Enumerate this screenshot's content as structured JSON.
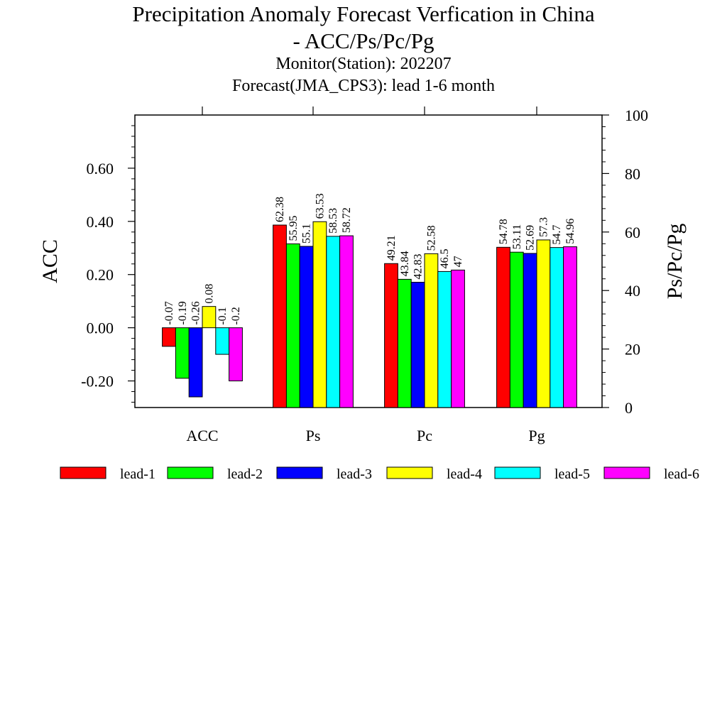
{
  "title": "Precipitation Anomaly Forecast Verfication in China",
  "title_line2": "- ACC/Ps/Pc/Pg",
  "subtitle_1": "Monitor(Station): 202207",
  "subtitle_2": "Forecast(JMA_CPS3): lead 1-6 month",
  "chart_data": {
    "type": "bar",
    "categories": [
      "ACC",
      "Ps",
      "Pc",
      "Pg"
    ],
    "series": [
      {
        "name": "lead-1",
        "color": "#ff0000",
        "values": [
          -0.07,
          62.38,
          49.21,
          54.78
        ],
        "labels": [
          "-0.07",
          "62.38",
          "49.21",
          "54.78"
        ]
      },
      {
        "name": "lead-2",
        "color": "#00ff00",
        "values": [
          -0.19,
          55.95,
          43.84,
          53.11
        ],
        "labels": [
          "-0.19",
          "55.95",
          "43.84",
          "53.11"
        ]
      },
      {
        "name": "lead-3",
        "color": "#0000ff",
        "values": [
          -0.26,
          55.1,
          42.83,
          52.69
        ],
        "labels": [
          "-0.26",
          "55.1",
          "42.83",
          "52.69"
        ]
      },
      {
        "name": "lead-4",
        "color": "#ffff00",
        "values": [
          0.08,
          63.53,
          52.58,
          57.3
        ],
        "labels": [
          "0.08",
          "63.53",
          "52.58",
          "57.3"
        ]
      },
      {
        "name": "lead-5",
        "color": "#00ffff",
        "values": [
          -0.1,
          58.53,
          46.5,
          54.7
        ],
        "labels": [
          "-0.1",
          "58.53",
          "46.5",
          "54.7"
        ]
      },
      {
        "name": "lead-6",
        "color": "#ff00ff",
        "values": [
          -0.2,
          58.72,
          47,
          54.96
        ],
        "labels": [
          "-0.2",
          "58.72",
          "47",
          "54.96"
        ]
      }
    ],
    "left_axis": {
      "label": "ACC",
      "range": [
        -0.3,
        0.8
      ],
      "ticks": [
        "-0.20",
        "0.00",
        "0.20",
        "0.40",
        "0.60"
      ],
      "tick_values": [
        -0.2,
        0,
        0.2,
        0.4,
        0.6
      ],
      "applies_to": [
        "ACC"
      ]
    },
    "right_axis": {
      "label": "Ps/Pc/Pg",
      "range": [
        0,
        100
      ],
      "ticks": [
        "0",
        "20",
        "40",
        "60",
        "80",
        "100"
      ],
      "tick_values": [
        0,
        20,
        40,
        60,
        80,
        100
      ],
      "applies_to": [
        "Ps",
        "Pc",
        "Pg"
      ]
    },
    "grid": false,
    "legend_position": "bottom"
  }
}
